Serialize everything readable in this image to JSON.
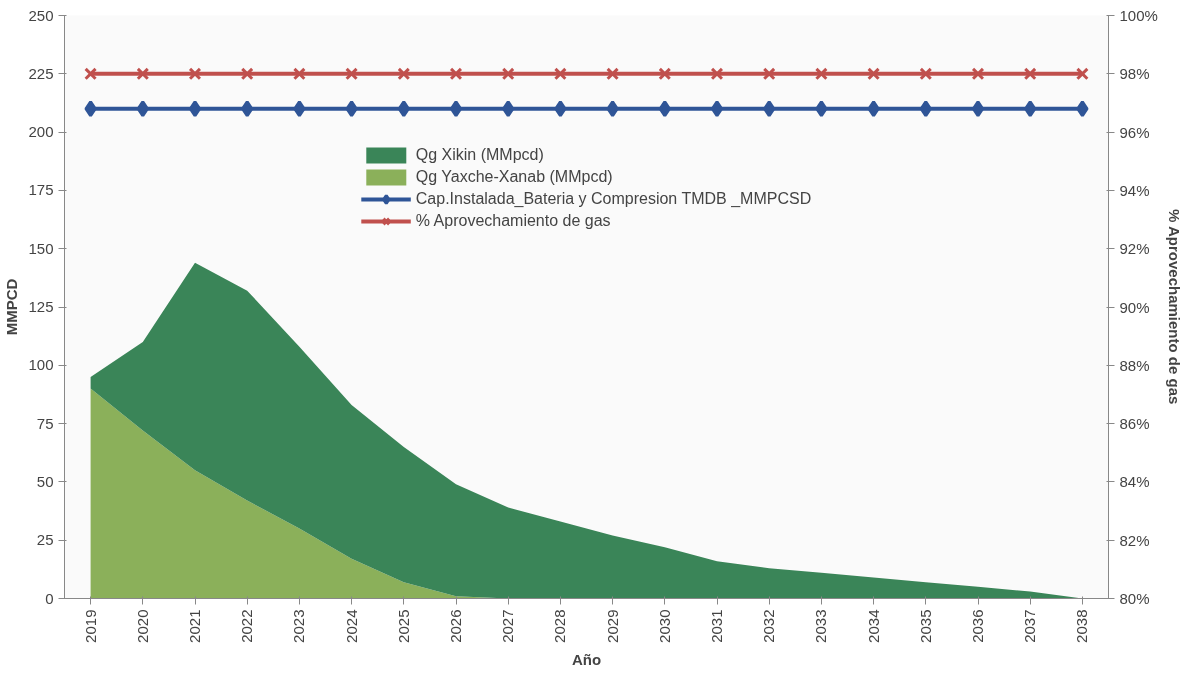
{
  "chart_data": {
    "type": "area",
    "stacked": true,
    "xlabel": "Año",
    "ylabel": "MMPCD",
    "y2label": "% Aprovechamiento de gas",
    "categories": [
      "2019",
      "2020",
      "2021",
      "2022",
      "2023",
      "2024",
      "2025",
      "2026",
      "2027",
      "2028",
      "2029",
      "2030",
      "2031",
      "2032",
      "2033",
      "2034",
      "2035",
      "2036",
      "2037",
      "2038"
    ],
    "series": [
      {
        "name": "Qg Yaxche-Xanab (MMpcd)",
        "color": "#8bb05a",
        "values": [
          90,
          72,
          55,
          42,
          30,
          17,
          7,
          1,
          0,
          0,
          0,
          0,
          0,
          0,
          0,
          0,
          0,
          0,
          0,
          0
        ]
      },
      {
        "name": "Qg Xikin (MMpcd)",
        "color": "#3a8558",
        "values": [
          5,
          38,
          89,
          90,
          78,
          66,
          58,
          48,
          39,
          33,
          27,
          22,
          16,
          13,
          11,
          9,
          7,
          5,
          3,
          0
        ]
      },
      {
        "name": "Cap.Instalada_Bateria y Compresion TMDB _MMPCSD",
        "type": "line",
        "color": "#2f5597",
        "marker": "diamond",
        "values": [
          210,
          210,
          210,
          210,
          210,
          210,
          210,
          210,
          210,
          210,
          210,
          210,
          210,
          210,
          210,
          210,
          210,
          210,
          210,
          210
        ]
      },
      {
        "name": "% Aprovechamiento de gas",
        "type": "line",
        "axis": "y2",
        "color": "#c0504d",
        "marker": "cross",
        "values": [
          98,
          98,
          98,
          98,
          98,
          98,
          98,
          98,
          98,
          98,
          98,
          98,
          98,
          98,
          98,
          98,
          98,
          98,
          98,
          98
        ]
      }
    ],
    "ylim": [
      0,
      250
    ],
    "yticks": [
      0,
      25,
      50,
      75,
      100,
      125,
      150,
      175,
      200,
      225,
      250
    ],
    "y2lim": [
      80,
      100
    ],
    "y2ticks": [
      {
        "value": 80,
        "label": "80%"
      },
      {
        "value": 82,
        "label": "82%"
      },
      {
        "value": 84,
        "label": "84%"
      },
      {
        "value": 86,
        "label": "86%"
      },
      {
        "value": 88,
        "label": "88%"
      },
      {
        "value": 90,
        "label": "90%"
      },
      {
        "value": 92,
        "label": "92%"
      },
      {
        "value": 94,
        "label": "94%"
      },
      {
        "value": 96,
        "label": "96%"
      },
      {
        "value": 98,
        "label": "98%"
      },
      {
        "value": 100,
        "label": "100%"
      }
    ],
    "grid": false,
    "legend": "top",
    "line_style": "solid"
  }
}
